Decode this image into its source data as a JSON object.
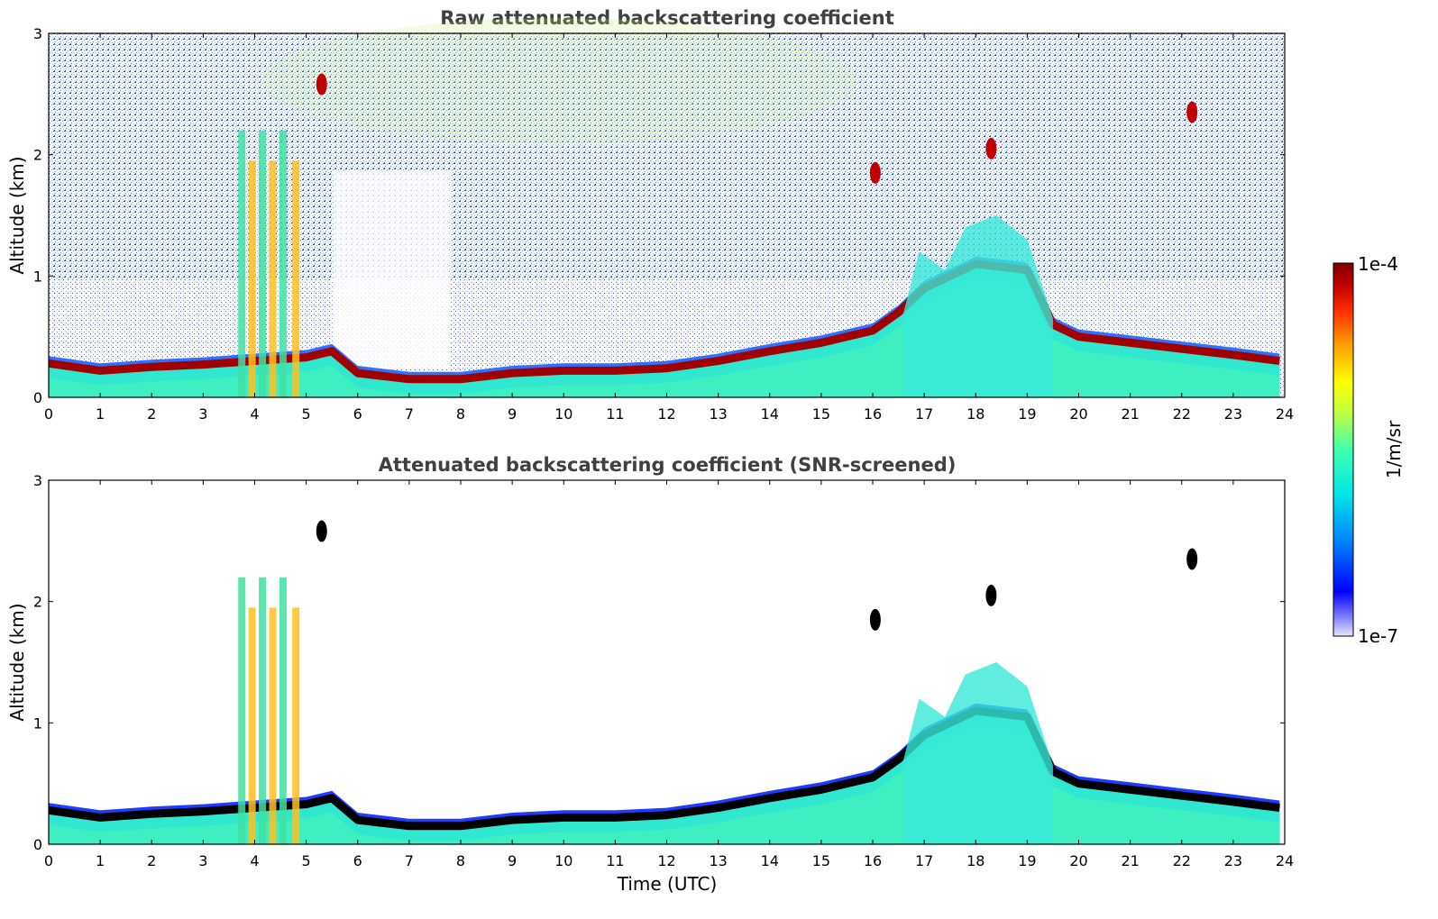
{
  "chart_data": [
    {
      "type": "heatmap",
      "title": "Raw attenuated backscattering coefficient",
      "xlabel": "",
      "ylabel": "Altitude (km)",
      "xlim": [
        0,
        24
      ],
      "ylim": [
        0,
        3
      ],
      "xticks": [
        "0",
        "1",
        "2",
        "3",
        "4",
        "5",
        "6",
        "7",
        "8",
        "9",
        "10",
        "11",
        "12",
        "13",
        "14",
        "15",
        "16",
        "17",
        "18",
        "19",
        "20",
        "21",
        "22",
        "23",
        "24"
      ],
      "yticks": [
        "0",
        "1",
        "2",
        "3"
      ],
      "boundary_layer_top_km": {
        "time": [
          0,
          1,
          2,
          3,
          4,
          5,
          5.5,
          6,
          7,
          8,
          9,
          10,
          11,
          12,
          13,
          14,
          15,
          16,
          16.5,
          17,
          18,
          19,
          19.5,
          20,
          21,
          22,
          23,
          23.9
        ],
        "altitude": [
          0.28,
          0.22,
          0.25,
          0.27,
          0.3,
          0.33,
          0.38,
          0.2,
          0.15,
          0.15,
          0.2,
          0.22,
          0.22,
          0.24,
          0.3,
          0.38,
          0.45,
          0.55,
          0.7,
          0.9,
          1.1,
          1.05,
          0.6,
          0.5,
          0.45,
          0.4,
          0.35,
          0.3
        ]
      },
      "features": [
        {
          "time": 5.3,
          "altitude": 2.58
        },
        {
          "time": 18.3,
          "altitude": 2.05
        },
        {
          "time": 22.2,
          "altitude": 2.35
        },
        {
          "time": 16.05,
          "altitude": 1.85
        }
      ]
    },
    {
      "type": "heatmap",
      "title": "Attenuated backscattering coefficient (SNR-screened)",
      "xlabel": "Time (UTC)",
      "ylabel": "Altitude (km)",
      "xlim": [
        0,
        24
      ],
      "ylim": [
        0,
        3
      ],
      "xticks": [
        "0",
        "1",
        "2",
        "3",
        "4",
        "5",
        "6",
        "7",
        "8",
        "9",
        "10",
        "11",
        "12",
        "13",
        "14",
        "15",
        "16",
        "17",
        "18",
        "19",
        "20",
        "21",
        "22",
        "23",
        "24"
      ],
      "yticks": [
        "0",
        "1",
        "2",
        "3"
      ]
    }
  ],
  "colorbar": {
    "max_label": "1e-4",
    "min_label": "1e-7",
    "unit_label": "1/m/sr",
    "colors": [
      "#e6e6fa",
      "#0000ff",
      "#0080ff",
      "#00e6e6",
      "#40ffb0",
      "#c0ff40",
      "#ffff00",
      "#ffa000",
      "#ff3000",
      "#c00000",
      "#800000"
    ]
  }
}
